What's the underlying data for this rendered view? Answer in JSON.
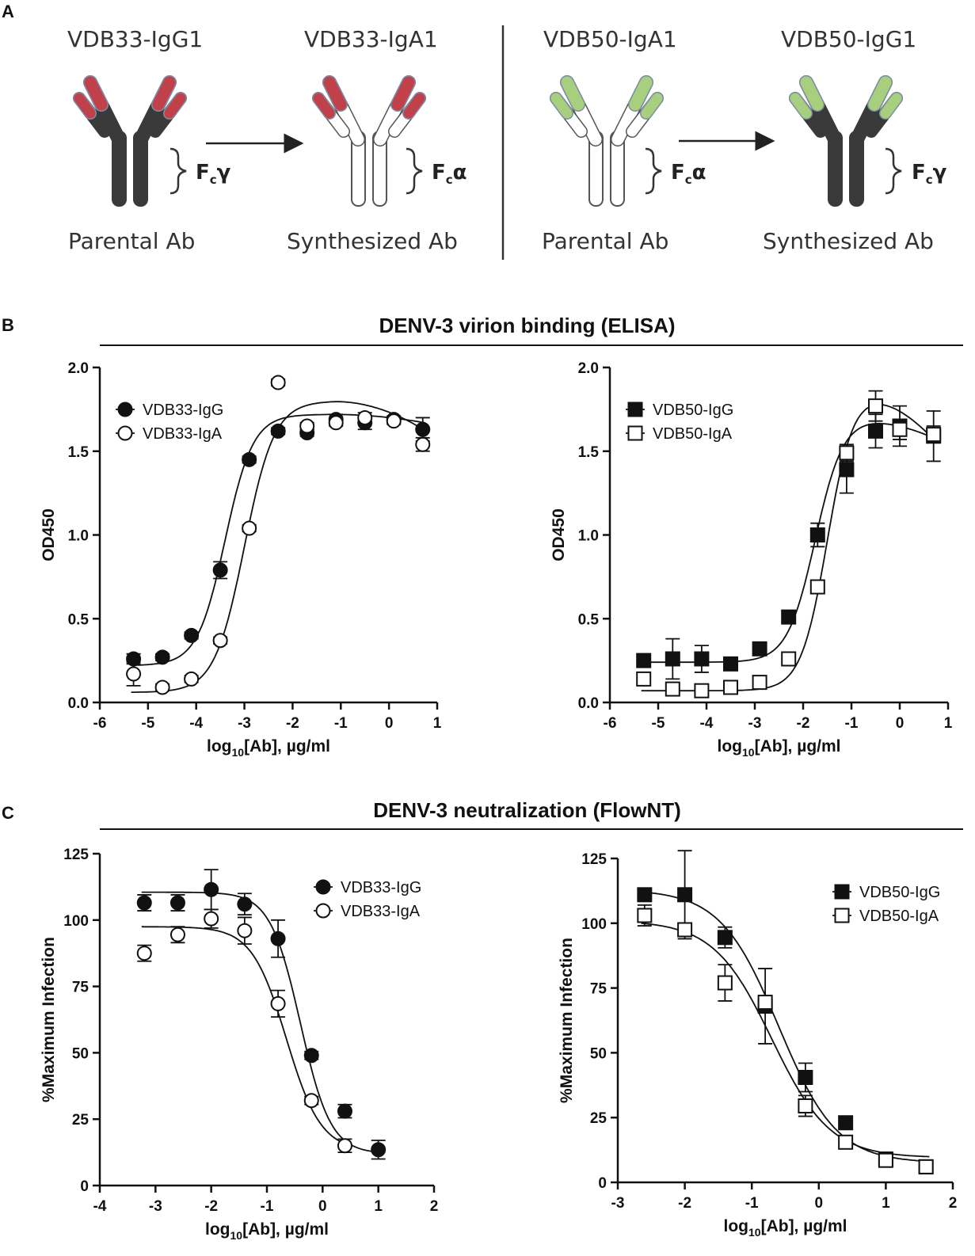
{
  "panels": {
    "A": "A",
    "B": "B",
    "C": "C"
  },
  "panel_a": {
    "items": [
      {
        "name": "VDB33-IgG1",
        "caption": "Parental Ab",
        "fc": "F",
        "fc_sub": "c",
        "fc_greek": "γ",
        "body": "dark",
        "tip": "#c0414a"
      },
      {
        "name": "VDB33-IgA1",
        "caption": "Synthesized Ab",
        "fc": "F",
        "fc_sub": "c",
        "fc_greek": "α",
        "body": "white",
        "tip": "#c0414a"
      },
      {
        "name": "VDB50-IgA1",
        "caption": "Parental Ab",
        "fc": "F",
        "fc_sub": "c",
        "fc_greek": "α",
        "body": "white",
        "tip": "#a7cf7e"
      },
      {
        "name": "VDB50-IgG1",
        "caption": "Synthesized Ab",
        "fc": "F",
        "fc_sub": "c",
        "fc_greek": "γ",
        "body": "dark",
        "tip": "#a7cf7e"
      }
    ],
    "colors": {
      "dark_body": "#3a3a3a",
      "red_tip": "#c0414a",
      "green_tip": "#a7cf7e"
    }
  },
  "section_b_title": "DENV-3 virion binding (ELISA)",
  "section_c_title": "DENV-3 neutralization (FlowNT)",
  "chart_data": [
    {
      "type": "scatter",
      "title": "",
      "xlabel_main": "log",
      "xlabel_sub": "10",
      "xlabel_rest": "[Ab], µg/ml",
      "ylabel": "OD450",
      "xlim": [
        -6,
        1
      ],
      "ylim": [
        0,
        2
      ],
      "xticks": [
        -6,
        -5,
        -4,
        -3,
        -2,
        -1,
        0,
        1
      ],
      "yticks": [
        0.0,
        0.5,
        1.0,
        1.5,
        2.0
      ],
      "ytick_labels": [
        "0.0",
        "0.5",
        "1.0",
        "1.5",
        "2.0"
      ],
      "legend_position": "top-left",
      "series": [
        {
          "name": "VDB33-IgG",
          "marker": "filled-circle",
          "x": [
            -5.3,
            -4.7,
            -4.1,
            -3.5,
            -2.9,
            -2.3,
            -1.7,
            -1.1,
            -0.5,
            0.1,
            0.7
          ],
          "y": [
            0.26,
            0.27,
            0.4,
            0.79,
            1.45,
            1.62,
            1.61,
            1.69,
            1.67,
            1.69,
            1.63
          ],
          "err": [
            0.03,
            0.02,
            0.02,
            0.05,
            0.02,
            0.02,
            0.02,
            0.03,
            0.04,
            0.02,
            0.07
          ],
          "fit": {
            "bottom": 0.22,
            "top": 1.72,
            "logec50": -3.4,
            "hill": 1.5,
            "decline": 0.02
          }
        },
        {
          "name": "VDB33-IgA",
          "marker": "open-circle",
          "x": [
            -5.3,
            -4.7,
            -4.1,
            -3.5,
            -2.9,
            -2.3,
            -1.7,
            -1.1,
            -0.5,
            0.1,
            0.7
          ],
          "y": [
            0.17,
            0.09,
            0.14,
            0.37,
            1.04,
            1.91,
            1.65,
            1.67,
            1.7,
            1.68,
            1.54
          ],
          "err": [
            0.07,
            0.02,
            0.02,
            0.02,
            0.02,
            0.02,
            0.02,
            0.02,
            0.03,
            0.02,
            0.04
          ],
          "fit": {
            "bottom": 0.06,
            "top": 1.8,
            "logec50": -3.0,
            "hill": 1.4,
            "decline": 0.07
          }
        }
      ]
    },
    {
      "type": "scatter",
      "title": "",
      "xlabel_main": "log",
      "xlabel_sub": "10",
      "xlabel_rest": "[Ab], µg/ml",
      "ylabel": "OD450",
      "xlim": [
        -6,
        1
      ],
      "ylim": [
        0,
        2
      ],
      "xticks": [
        -6,
        -5,
        -4,
        -3,
        -2,
        -1,
        0,
        1
      ],
      "yticks": [
        0.0,
        0.5,
        1.0,
        1.5,
        2.0
      ],
      "ytick_labels": [
        "0.0",
        "0.5",
        "1.0",
        "1.5",
        "2.0"
      ],
      "legend_position": "top-left",
      "series": [
        {
          "name": "VDB50-IgG",
          "marker": "filled-square",
          "x": [
            -5.3,
            -4.7,
            -4.1,
            -3.5,
            -2.9,
            -2.3,
            -1.7,
            -1.1,
            -0.5,
            0.0,
            0.7
          ],
          "y": [
            0.25,
            0.26,
            0.26,
            0.23,
            0.32,
            0.51,
            1.0,
            1.39,
            1.62,
            1.65,
            1.59
          ],
          "err": [
            0.04,
            0.12,
            0.08,
            0.03,
            0.03,
            0.03,
            0.07,
            0.14,
            0.1,
            0.12,
            0.15
          ],
          "fit": {
            "bottom": 0.24,
            "top": 1.7,
            "logec50": -1.75,
            "hill": 1.5,
            "decline": 0.05
          }
        },
        {
          "name": "VDB50-IgA",
          "marker": "open-square",
          "x": [
            -5.3,
            -4.7,
            -4.1,
            -3.5,
            -2.9,
            -2.3,
            -1.7,
            -1.1,
            -0.5,
            0.0,
            0.7
          ],
          "y": [
            0.14,
            0.08,
            0.07,
            0.09,
            0.12,
            0.26,
            0.69,
            1.49,
            1.77,
            1.63,
            1.6
          ],
          "err": [
            0.02,
            0.02,
            0.02,
            0.02,
            0.02,
            0.02,
            0.02,
            0.05,
            0.09,
            0.06,
            0.05
          ],
          "fit": {
            "bottom": 0.07,
            "top": 1.86,
            "logec50": -1.5,
            "hill": 1.6,
            "decline": 0.12
          }
        }
      ]
    },
    {
      "type": "scatter",
      "title": "",
      "xlabel_main": "log",
      "xlabel_sub": "10",
      "xlabel_rest": "[Ab], µg/ml",
      "ylabel": "%Maximum Infection",
      "xlim": [
        -4,
        2
      ],
      "ylim": [
        0,
        125
      ],
      "xticks": [
        -4,
        -3,
        -2,
        -1,
        0,
        1,
        2
      ],
      "yticks": [
        0,
        25,
        50,
        75,
        100,
        125
      ],
      "ytick_labels": [
        "0",
        "25",
        "50",
        "75",
        "100",
        "125"
      ],
      "legend_position": "top-right",
      "series": [
        {
          "name": "VDB33-IgG",
          "marker": "filled-circle",
          "x": [
            -3.2,
            -2.6,
            -2.0,
            -1.4,
            -0.8,
            -0.2,
            0.4,
            1.0
          ],
          "y": [
            106.5,
            106.5,
            111.5,
            106.0,
            93.0,
            49.0,
            28.0,
            13.5
          ],
          "err": [
            3.0,
            3.0,
            7.5,
            4.0,
            7.0,
            1.5,
            2.5,
            3.5
          ],
          "fit": {
            "top": 110.5,
            "bottom": 12.0,
            "logic50": -0.4,
            "hill": 1.6
          }
        },
        {
          "name": "VDB33-IgA",
          "marker": "open-circle",
          "x": [
            -3.2,
            -2.6,
            -2.0,
            -1.4,
            -0.8,
            -0.2,
            0.4
          ],
          "y": [
            87.5,
            94.5,
            100.5,
            96.0,
            68.5,
            32.0,
            15.0
          ],
          "err": [
            3.0,
            3.0,
            3.5,
            5.0,
            5.0,
            1.5,
            2.5
          ],
          "fit": {
            "top": 97.5,
            "bottom": 13.0,
            "logic50": -0.65,
            "hill": 1.4
          }
        }
      ]
    },
    {
      "type": "scatter",
      "title": "",
      "xlabel_main": "log",
      "xlabel_sub": "10",
      "xlabel_rest": "[Ab], µg/ml",
      "ylabel": "%Maximum Infection",
      "xlim": [
        -3,
        2
      ],
      "ylim": [
        0,
        125
      ],
      "xticks": [
        -3,
        -2,
        -1,
        0,
        1,
        2
      ],
      "yticks": [
        0,
        25,
        50,
        75,
        100,
        125
      ],
      "ytick_labels": [
        "0",
        "25",
        "50",
        "75",
        "100",
        "125"
      ],
      "legend_position": "top-right",
      "series": [
        {
          "name": "VDB50-IgG",
          "marker": "filled-square",
          "x": [
            -2.6,
            -2.0,
            -1.4,
            -0.8,
            -0.2,
            0.4,
            1.0,
            1.6
          ],
          "y": [
            111.0,
            111.0,
            94.5,
            68.0,
            40.5,
            23.0,
            9.0,
            6.0
          ],
          "err": [
            2.0,
            17.0,
            4.0,
            14.5,
            5.5,
            1.5,
            1.5,
            1.5
          ],
          "fit": {
            "top": 113.0,
            "bottom": 7.5,
            "logic50": -0.6,
            "hill": 1.0
          }
        },
        {
          "name": "VDB50-IgA",
          "marker": "open-square",
          "x": [
            -2.6,
            -2.0,
            -1.4,
            -0.8,
            -0.2,
            0.4,
            1.0,
            1.6
          ],
          "y": [
            103.0,
            97.5,
            77.0,
            69.5,
            29.5,
            15.5,
            8.5,
            6.0
          ],
          "err": [
            4.0,
            2.0,
            7.0,
            2.0,
            4.0,
            1.5,
            1.5,
            1.5
          ],
          "fit": {
            "top": 101.0,
            "bottom": 9.5,
            "logic50": -0.7,
            "hill": 1.0
          }
        }
      ]
    }
  ]
}
